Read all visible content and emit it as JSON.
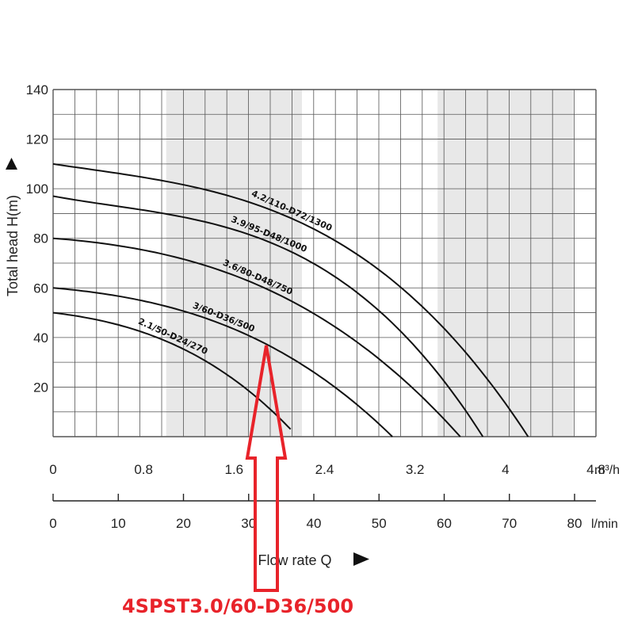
{
  "chart_data": {
    "type": "line",
    "title": "",
    "ylabel": "Total head H(m)",
    "xlabel": "Flow rate Q",
    "x_unit_primary": "m³/h",
    "x_unit_secondary": "l/min",
    "ylim": [
      0,
      140
    ],
    "xlim": [
      0,
      4.8
    ],
    "y_ticks": [
      "20",
      "40",
      "60",
      "80",
      "100",
      "120",
      "140"
    ],
    "x_ticks_m3h": [
      "0",
      "0.8",
      "1.6",
      "2.4",
      "3.2",
      "4",
      "4.8"
    ],
    "x_ticks_lmin": [
      "0",
      "10",
      "20",
      "30",
      "40",
      "50",
      "60",
      "70",
      "80"
    ],
    "grid": true,
    "shaded_bands_m3h": [
      [
        1.0,
        2.2
      ],
      [
        3.4,
        4.6
      ]
    ],
    "series": [
      {
        "name": "2.1/50-D24/270",
        "x": [
          0,
          0.8,
          1.6,
          2.1
        ],
        "y": [
          50,
          42,
          23,
          3
        ]
      },
      {
        "name": "3/60-D36/500",
        "x": [
          0,
          1.2,
          2.4,
          3.0
        ],
        "y": [
          60,
          50,
          23,
          0
        ]
      },
      {
        "name": "3.6/80-D48/750",
        "x": [
          0,
          1.2,
          2.4,
          3.6
        ],
        "y": [
          80,
          71,
          47,
          0
        ]
      },
      {
        "name": "3.9/95-D48/1000",
        "x": [
          0,
          1.4,
          2.8,
          3.8
        ],
        "y": [
          97,
          86,
          54,
          0
        ]
      },
      {
        "name": "4.2/110-D72/1300",
        "x": [
          0,
          1.4,
          2.8,
          4.2
        ],
        "y": [
          110,
          99,
          70,
          0
        ]
      }
    ],
    "annotation": {
      "text": "4SPST3.0/60-D36/500",
      "points_to_series": "3/60-D36/500",
      "color": "#e8232a"
    }
  }
}
